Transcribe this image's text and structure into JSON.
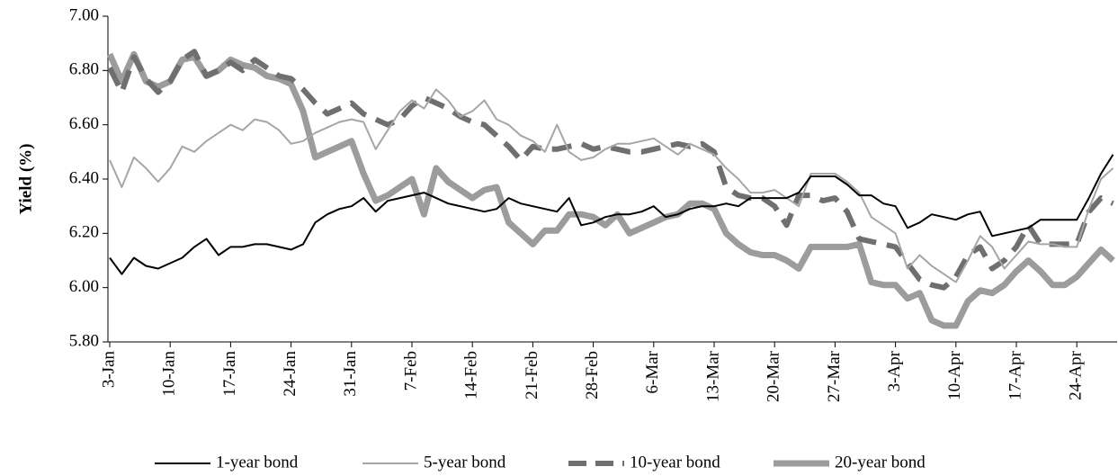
{
  "chart_data": {
    "type": "line",
    "y_label": "Yield (%)",
    "categories": [
      "3-Jan",
      null,
      null,
      null,
      null,
      "10-Jan",
      null,
      null,
      null,
      null,
      "17-Jan",
      null,
      null,
      null,
      null,
      "24-Jan",
      null,
      null,
      null,
      null,
      "31-Jan",
      null,
      null,
      null,
      null,
      "7-Feb",
      null,
      null,
      null,
      null,
      "14-Feb",
      null,
      null,
      null,
      null,
      "21-Feb",
      null,
      null,
      null,
      null,
      "28-Feb",
      null,
      null,
      null,
      null,
      "6-Mar",
      null,
      null,
      null,
      null,
      "13-Mar",
      null,
      null,
      null,
      null,
      "20-Mar",
      null,
      null,
      null,
      null,
      "27-Mar",
      null,
      null,
      null,
      null,
      "3-Apr",
      null,
      null,
      null,
      null,
      "10-Apr",
      null,
      null,
      null,
      null,
      "17-Apr",
      null,
      null,
      null,
      null,
      "24-Apr",
      null,
      null,
      null
    ],
    "series": [
      {
        "name": "1-year bond",
        "color": "#000000",
        "values": [
          6.11,
          6.05,
          6.11,
          6.08,
          6.07,
          6.09,
          6.11,
          6.15,
          6.18,
          6.12,
          6.15,
          6.15,
          6.16,
          6.16,
          6.15,
          6.14,
          6.16,
          6.24,
          6.27,
          6.29,
          6.3,
          6.33,
          6.28,
          6.32,
          6.33,
          6.34,
          6.35,
          6.33,
          6.31,
          6.3,
          6.29,
          6.28,
          6.29,
          6.33,
          6.31,
          6.3,
          6.29,
          6.28,
          6.33,
          6.23,
          6.24,
          6.26,
          6.27,
          6.27,
          6.28,
          6.3,
          6.26,
          6.27,
          6.29,
          6.3,
          6.3,
          6.31,
          6.3,
          6.33,
          6.33,
          6.33,
          6.33,
          6.35,
          6.41,
          6.41,
          6.41,
          6.38,
          6.34,
          6.34,
          6.31,
          6.3,
          6.22,
          6.24,
          6.27,
          6.26,
          6.25,
          6.27,
          6.28,
          6.19,
          6.2,
          6.21,
          6.22,
          6.25,
          6.25,
          6.25,
          6.25,
          6.33,
          6.42,
          6.49
        ]
      },
      {
        "name": "5-year bond",
        "color": "#a6a6a6",
        "values": [
          6.47,
          6.37,
          6.48,
          6.44,
          6.39,
          6.44,
          6.52,
          6.5,
          6.54,
          6.57,
          6.6,
          6.58,
          6.62,
          6.61,
          6.58,
          6.53,
          6.54,
          6.57,
          6.59,
          6.61,
          6.62,
          6.61,
          6.51,
          6.58,
          6.65,
          6.69,
          6.66,
          6.73,
          6.69,
          6.63,
          6.65,
          6.69,
          6.62,
          6.6,
          6.56,
          6.54,
          6.5,
          6.6,
          6.5,
          6.47,
          6.48,
          6.51,
          6.53,
          6.53,
          6.54,
          6.55,
          6.52,
          6.49,
          6.53,
          6.51,
          6.49,
          6.44,
          6.4,
          6.35,
          6.35,
          6.36,
          6.33,
          6.3,
          6.42,
          6.42,
          6.42,
          6.39,
          6.35,
          6.26,
          6.23,
          6.2,
          6.07,
          6.12,
          6.08,
          6.05,
          6.02,
          6.1,
          6.19,
          6.15,
          6.07,
          6.12,
          6.17,
          6.16,
          6.16,
          6.15,
          6.15,
          6.29,
          6.4,
          6.44
        ]
      },
      {
        "name": "10-year bond",
        "color": "#6f6f6f",
        "values": [
          6.81,
          6.72,
          6.85,
          6.77,
          6.72,
          6.76,
          6.84,
          6.87,
          6.78,
          6.8,
          6.83,
          6.8,
          6.84,
          6.81,
          6.78,
          6.77,
          6.73,
          6.68,
          6.64,
          6.66,
          6.68,
          6.64,
          6.62,
          6.6,
          6.62,
          6.67,
          6.7,
          6.68,
          6.66,
          6.63,
          6.61,
          6.6,
          6.56,
          6.52,
          6.47,
          6.52,
          6.51,
          6.51,
          6.52,
          6.53,
          6.51,
          6.52,
          6.51,
          6.5,
          6.5,
          6.51,
          6.52,
          6.53,
          6.52,
          6.53,
          6.5,
          6.37,
          6.34,
          6.33,
          6.33,
          6.3,
          6.23,
          6.34,
          6.34,
          6.32,
          6.33,
          6.28,
          6.18,
          6.17,
          6.16,
          6.15,
          6.09,
          6.03,
          6.01,
          6.0,
          6.04,
          6.12,
          6.15,
          6.07,
          6.1,
          6.15,
          6.23,
          6.16,
          6.16,
          6.16,
          6.16,
          6.28,
          6.33,
          6.31
        ]
      },
      {
        "name": "20-year bond",
        "color": "#9c9c9c",
        "values": [
          6.86,
          6.76,
          6.86,
          6.76,
          6.74,
          6.76,
          6.84,
          6.85,
          6.78,
          6.8,
          6.84,
          6.82,
          6.81,
          6.78,
          6.77,
          6.75,
          6.65,
          6.48,
          6.5,
          6.52,
          6.54,
          6.42,
          6.32,
          6.34,
          6.37,
          6.4,
          6.27,
          6.44,
          6.39,
          6.36,
          6.33,
          6.36,
          6.37,
          6.24,
          6.2,
          6.16,
          6.21,
          6.21,
          6.27,
          6.27,
          6.26,
          6.23,
          6.27,
          6.2,
          6.22,
          6.24,
          6.26,
          6.27,
          6.31,
          6.31,
          6.29,
          6.2,
          6.16,
          6.13,
          6.12,
          6.12,
          6.1,
          6.07,
          6.15,
          6.15,
          6.15,
          6.15,
          6.16,
          6.02,
          6.01,
          6.01,
          5.96,
          5.98,
          5.88,
          5.86,
          5.86,
          5.95,
          5.99,
          5.98,
          6.01,
          6.06,
          6.1,
          6.06,
          6.01,
          6.01,
          6.04,
          6.09,
          6.14,
          6.1
        ]
      }
    ],
    "ylim": [
      5.8,
      7.0
    ],
    "yticks": [
      {
        "value": 5.8,
        "label": "5.80"
      },
      {
        "value": 6.0,
        "label": "6.00"
      },
      {
        "value": 6.2,
        "label": "6.20"
      },
      {
        "value": 6.4,
        "label": "6.40"
      },
      {
        "value": 6.6,
        "label": "6.60"
      },
      {
        "value": 6.8,
        "label": "6.80"
      },
      {
        "value": 7.0,
        "label": "7.00"
      }
    ],
    "legend": "bottom"
  }
}
